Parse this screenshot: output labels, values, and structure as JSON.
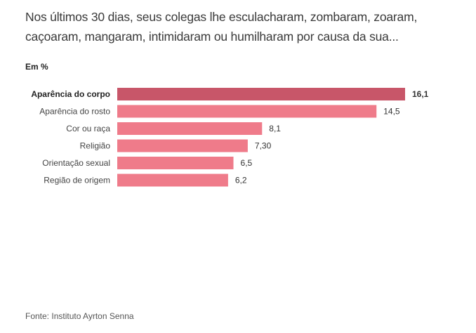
{
  "title": "Nos últimos 30 dias, seus colegas lhe esculacharam, zombaram, zoaram, caçoaram, mangaram, intimidaram ou humilharam por causa da sua...",
  "unit_label": "Em %",
  "source": "Fonte: Instituto Ayrton Senna",
  "colors": {
    "highlight": "#c85669",
    "bar": "#ef7b8a"
  },
  "chart_data": {
    "type": "bar",
    "orientation": "horizontal",
    "title": "Nos últimos 30 dias, seus colegas lhe esculacharam, zombaram, zoaram, caçoaram, mangaram, intimidaram ou humilharam por causa da sua...",
    "xlabel": "",
    "ylabel": "Em %",
    "categories": [
      "Aparência do corpo",
      "Aparência do rosto",
      "Cor ou raça",
      "Religião",
      "Orientação sexual",
      "Região de origem"
    ],
    "values": [
      16.1,
      14.5,
      8.1,
      7.3,
      6.5,
      6.2
    ],
    "value_labels": [
      "16,1",
      "14,5",
      "8,1",
      "7,30",
      "6,5",
      "6,2"
    ],
    "highlighted_index": 0,
    "xlim": [
      0,
      16.1
    ],
    "grid": false,
    "legend": "none"
  }
}
